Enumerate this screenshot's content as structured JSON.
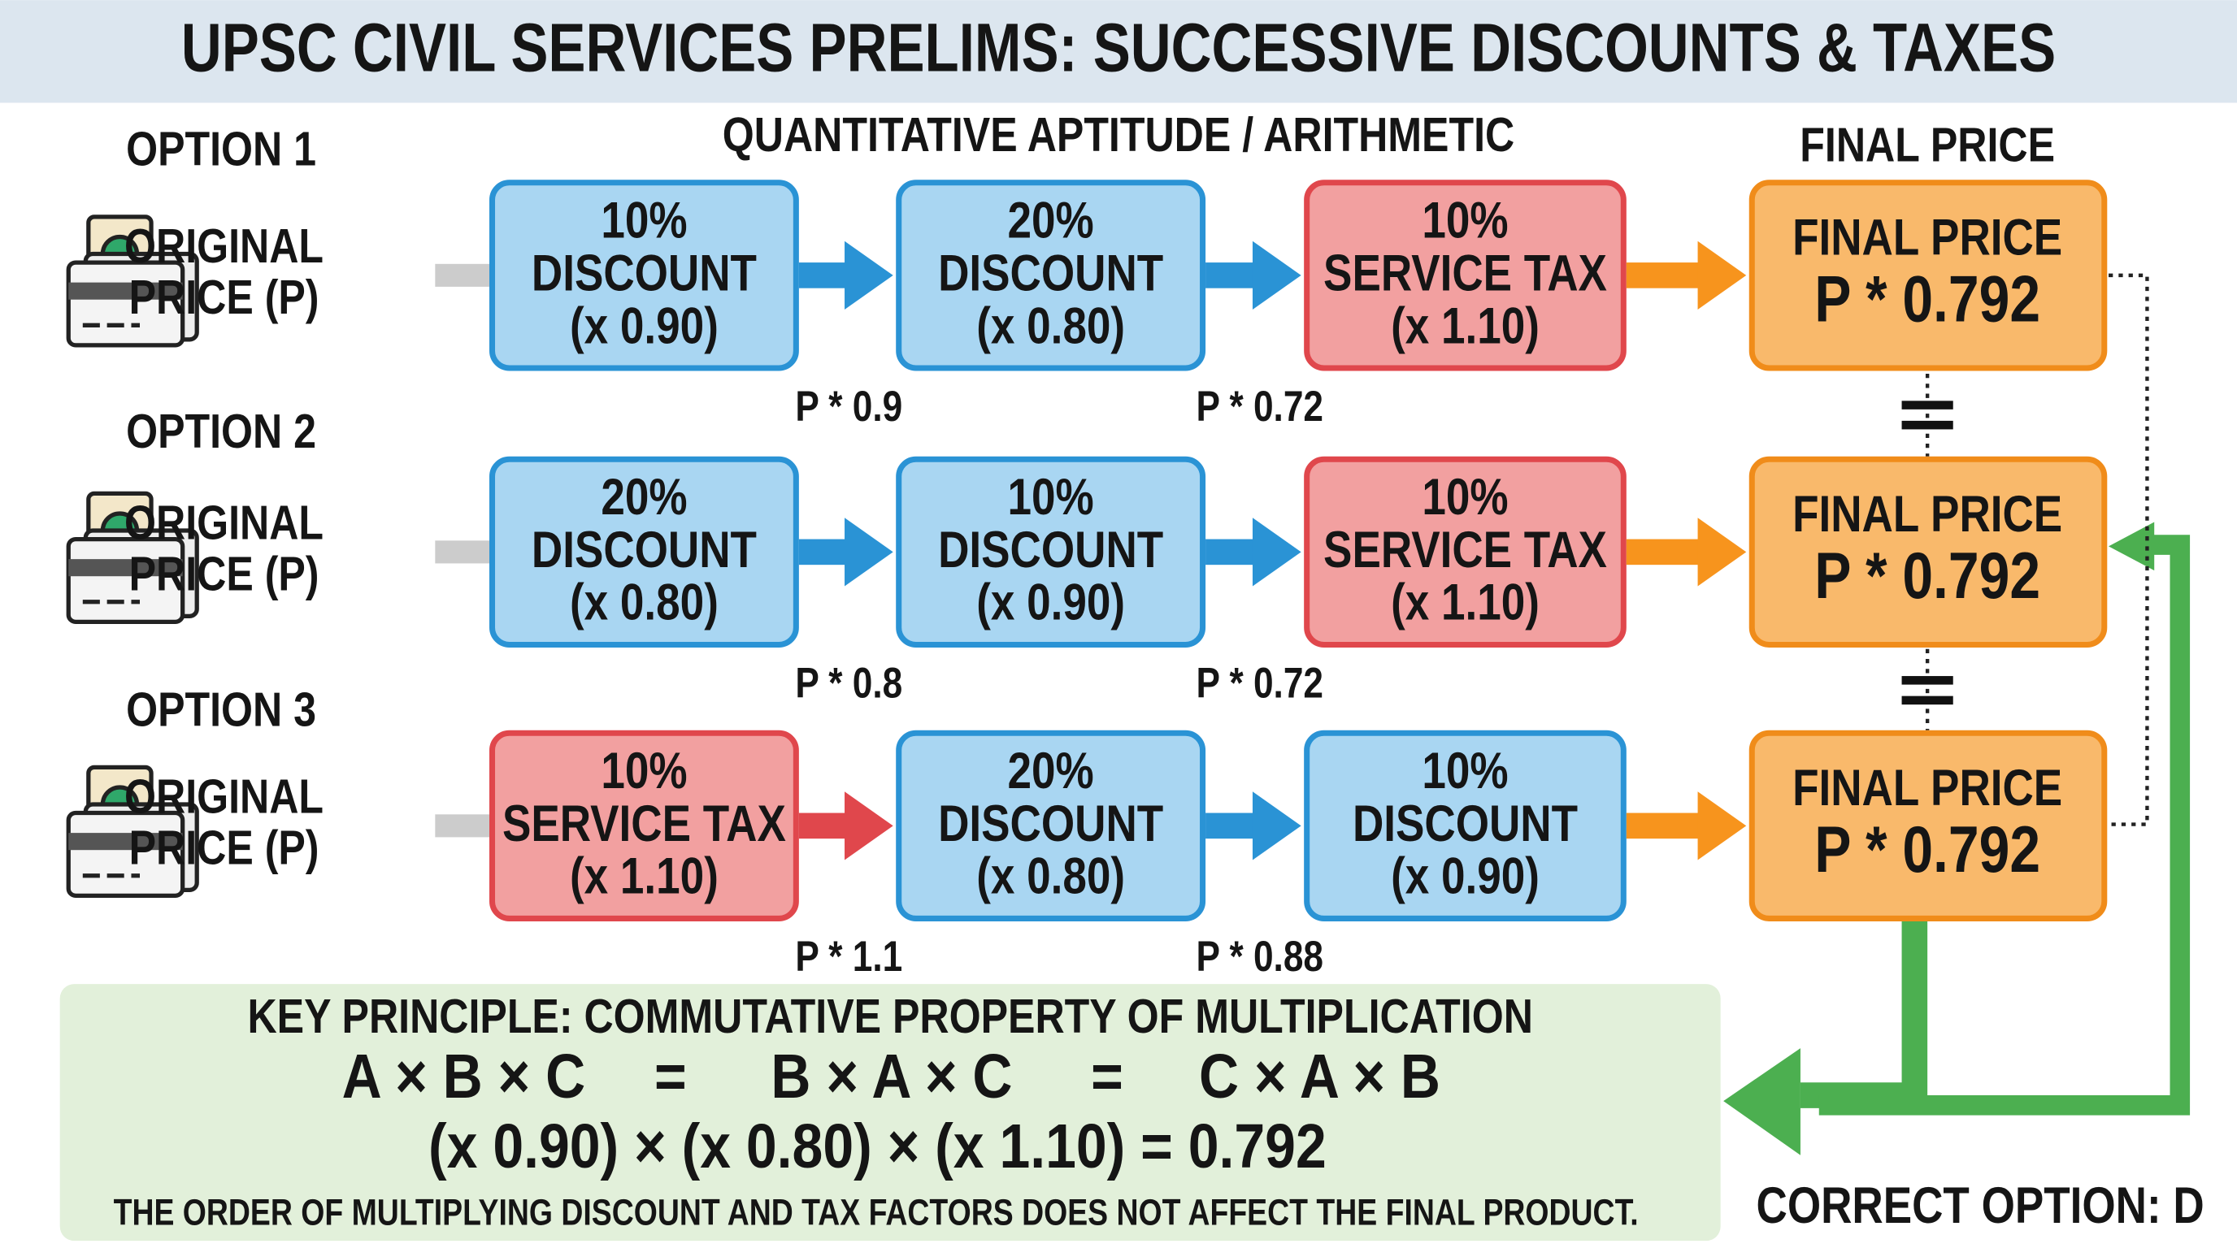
{
  "title": "UPSC CIVIL SERVICES PRELIMS: SUCCESSIVE DISCOUNTS & TAXES",
  "subtitle": "QUANTITATIVE APTITUDE / ARITHMETIC",
  "final_header": "FINAL PRICE",
  "options": [
    {
      "label": "OPTION 1",
      "start": [
        "ORIGINAL",
        "PRICE (P)"
      ],
      "steps": [
        {
          "lines": [
            "10%",
            "DISCOUNT",
            "(x 0.90)"
          ],
          "color": "#a9d6f2"
        },
        {
          "lines": [
            "20%",
            "DISCOUNT",
            "(x 0.80)"
          ],
          "color": "#a9d6f2"
        },
        {
          "lines": [
            "10%",
            "SERVICE TAX",
            "(x 1.10)"
          ],
          "color": "#f2a0a0"
        }
      ],
      "intermediate": [
        "P * 0.9",
        "P * 0.72"
      ],
      "final": [
        "FINAL PRICE",
        "P * 0.792"
      ]
    },
    {
      "label": "OPTION 2",
      "start": [
        "ORIGINAL",
        "PRICE (P)"
      ],
      "steps": [
        {
          "lines": [
            "20%",
            "DISCOUNT",
            "(x 0.80)"
          ],
          "color": "#a9d6f2"
        },
        {
          "lines": [
            "10%",
            "DISCOUNT",
            "(x 0.90)"
          ],
          "color": "#a9d6f2"
        },
        {
          "lines": [
            "10%",
            "SERVICE TAX",
            "(x 1.10)"
          ],
          "color": "#f2a0a0"
        }
      ],
      "intermediate": [
        "P * 0.8",
        "P * 0.72"
      ],
      "final": [
        "FINAL PRICE",
        "P * 0.792"
      ]
    },
    {
      "label": "OPTION 3",
      "start": [
        "ORIGINAL",
        "PRICE (P)"
      ],
      "steps": [
        {
          "lines": [
            "10%",
            "SERVICE TAX",
            "(x 1.10)"
          ],
          "color": "#f2a0a0"
        },
        {
          "lines": [
            "20%",
            "DISCOUNT",
            "(x 0.80)"
          ],
          "color": "#a9d6f2"
        },
        {
          "lines": [
            "10%",
            "DISCOUNT",
            "(x 0.90)"
          ],
          "color": "#a9d6f2"
        }
      ],
      "intermediate": [
        "P * 1.1",
        "P * 0.88"
      ],
      "final": [
        "FINAL PRICE",
        "P * 0.792"
      ]
    }
  ],
  "key": {
    "title": "KEY PRINCIPLE: COMMUTATIVE PROPERTY OF MULTIPLICATION",
    "equation": [
      "A × B × C",
      "=",
      "B × A × C",
      "=",
      "C × A × B"
    ],
    "numeric": "(x 0.90) × (x 0.80) × (x 1.10) = 0.792",
    "note": "THE ORDER OF MULTIPLYING DISCOUNT AND TAX FACTORS DOES NOT AFFECT THE FINAL PRODUCT."
  },
  "answer": "CORRECT OPTION: D"
}
